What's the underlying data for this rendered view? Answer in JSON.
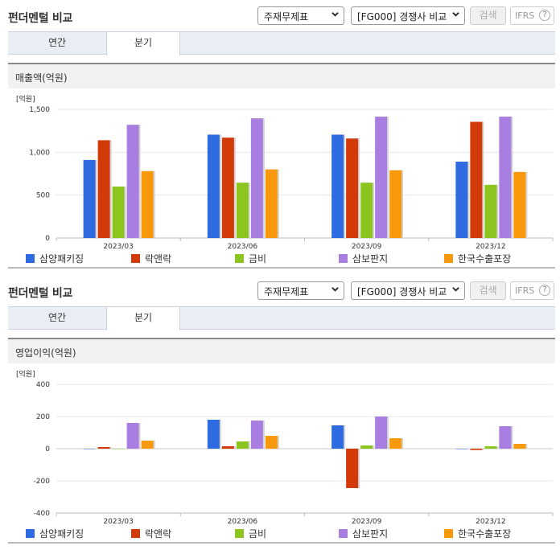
{
  "colors": [
    "#2e6be0",
    "#d23a0a",
    "#8bc51e",
    "#a87fe0",
    "#f7990b"
  ],
  "panels": [
    {
      "title": "펀더멘털 비교",
      "statement_select": "주재무제표",
      "compare_select": "[FG000] 경쟁사 비교",
      "search_label": "검색",
      "ifrs_label": "IFRS",
      "help_icon_label": "?",
      "tabs": [
        {
          "label": "연간"
        },
        {
          "label": "분기"
        }
      ],
      "active_tab": 1,
      "section_title": "매출액(억원)",
      "legend": [
        "삼양패키징",
        "락앤락",
        "금비",
        "삼보판지",
        "한국수출포장"
      ],
      "chart_data": {
        "type": "bar",
        "unit_label": "[억원]",
        "categories": [
          "2023/03",
          "2023/06",
          "2023/09",
          "2023/12"
        ],
        "y_ticks": [
          "1,500",
          "1,000",
          "500",
          "0"
        ],
        "ylim": [
          0,
          1500
        ],
        "series": [
          {
            "name": "삼양패키징",
            "values": [
              910,
              1205,
              1205,
              890
            ]
          },
          {
            "name": "락앤락",
            "values": [
              1140,
              1170,
              1160,
              1355
            ]
          },
          {
            "name": "금비",
            "values": [
              600,
              645,
              645,
              620
            ]
          },
          {
            "name": "삼보판지",
            "values": [
              1320,
              1395,
              1415,
              1415
            ]
          },
          {
            "name": "한국수출포장",
            "values": [
              780,
              800,
              790,
              770
            ]
          }
        ]
      }
    },
    {
      "title": "펀더멘털 비교",
      "statement_select": "주재무제표",
      "compare_select": "[FG000] 경쟁사 비교",
      "search_label": "검색",
      "ifrs_label": "IFRS",
      "help_icon_label": "?",
      "tabs": [
        {
          "label": "연간"
        },
        {
          "label": "분기"
        }
      ],
      "active_tab": 1,
      "section_title": "영업이익(억원)",
      "legend": [
        "삼양패키징",
        "락앤락",
        "금비",
        "삼보판지",
        "한국수출포장"
      ],
      "chart_data": {
        "type": "bar",
        "unit_label": "[억원]",
        "categories": [
          "2023/03",
          "2023/06",
          "2023/09",
          "2023/12"
        ],
        "y_ticks": [
          "400",
          "200",
          "0",
          "-200",
          "-400"
        ],
        "ylim": [
          -400,
          400
        ],
        "series": [
          {
            "name": "삼양패키징",
            "values": [
              0,
              180,
              145,
              0
            ]
          },
          {
            "name": "락앤락",
            "values": [
              10,
              15,
              -245,
              -8
            ]
          },
          {
            "name": "금비",
            "values": [
              0,
              45,
              20,
              15
            ]
          },
          {
            "name": "삼보판지",
            "values": [
              160,
              175,
              200,
              140
            ]
          },
          {
            "name": "한국수출포장",
            "values": [
              50,
              80,
              65,
              30
            ]
          }
        ]
      }
    }
  ]
}
